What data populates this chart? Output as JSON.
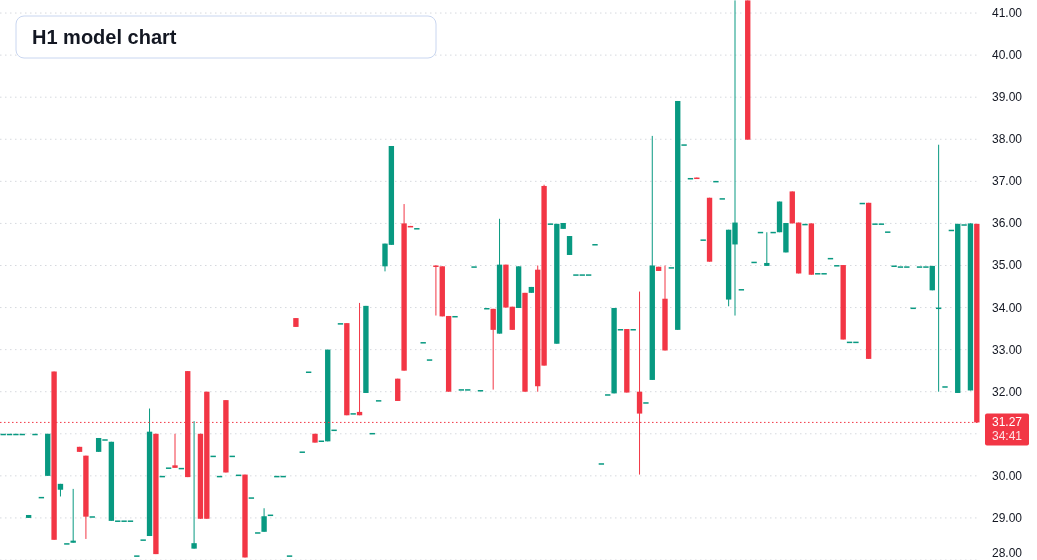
{
  "chart_data": {
    "type": "candlestick",
    "title": "H1 model chart",
    "categories": [
      null,
      null,
      null,
      null,
      null,
      null,
      null,
      null,
      null,
      null,
      null,
      null,
      null,
      null,
      null,
      null,
      null,
      null,
      null,
      null,
      null,
      null,
      null,
      null,
      null,
      null,
      null,
      null,
      null,
      null,
      null,
      null,
      null,
      null,
      null,
      null,
      null,
      null,
      null,
      null,
      null,
      null,
      null,
      null,
      null,
      null,
      null,
      null,
      null,
      null,
      null,
      null,
      null,
      null,
      null,
      null,
      null,
      null,
      null,
      null,
      null,
      null,
      null,
      null,
      null,
      null,
      null,
      null,
      null,
      null,
      null,
      null,
      null,
      null,
      null,
      null,
      null,
      null,
      null,
      null,
      null,
      null,
      null,
      null,
      null,
      null,
      null,
      null,
      null,
      null,
      null,
      null,
      null,
      null,
      null,
      null,
      null,
      null,
      null,
      null,
      null,
      null,
      null,
      null,
      null,
      null,
      null,
      null,
      null,
      null,
      null,
      null,
      null,
      null,
      null,
      null,
      null,
      null,
      null,
      null,
      null,
      null,
      null,
      null,
      null,
      null,
      null,
      null,
      null,
      null,
      null,
      null,
      null,
      null,
      null,
      null,
      null,
      null,
      null,
      null,
      null,
      null,
      null,
      null,
      null,
      null,
      null,
      null,
      null,
      null,
      null,
      null,
      null,
      null
    ],
    "ohlc": [
      [
        31,
        31,
        31,
        31
      ],
      [
        31,
        31,
        31,
        31
      ],
      [
        31,
        31,
        31,
        31
      ],
      [
        31,
        31,
        31,
        31
      ],
      [
        29.0,
        29.07,
        29.0,
        29.07
      ],
      [
        31,
        31,
        31,
        31
      ],
      [
        29.5,
        29.5,
        29.5,
        29.5
      ],
      [
        30.0,
        31.0,
        30.0,
        31.0
      ],
      [
        32.48,
        32.48,
        28.48,
        28.48
      ],
      [
        29.67,
        29.81,
        29.51,
        29.81
      ],
      [
        28.4,
        28.4,
        28.4,
        28.4
      ],
      [
        28.41,
        29.69,
        28.41,
        28.46
      ],
      [
        30.69,
        30.69,
        30.57,
        30.57
      ],
      [
        30.48,
        30.48,
        28.5,
        29.03
      ],
      [
        29.04,
        29.04,
        29.04,
        29.04
      ],
      [
        30.57,
        30.9,
        30.57,
        30.9
      ],
      [
        30.87,
        30.87,
        30.87,
        30.87
      ],
      [
        28.93,
        30.81,
        28.93,
        30.81
      ],
      [
        28.94,
        28.94,
        28.94,
        28.94
      ],
      [
        28.94,
        28.94,
        28.94,
        28.94
      ],
      [
        28.94,
        28.94,
        28.94,
        28.94
      ],
      [
        28.11,
        28.11,
        28.11,
        28.11
      ],
      [
        28.49,
        28.49,
        28.49,
        28.49
      ],
      [
        28.57,
        31.6,
        28.57,
        31.05
      ],
      [
        31.0,
        31.0,
        28.14,
        28.14
      ],
      [
        30.0,
        30.0,
        30.0,
        30.0
      ],
      [
        30.2,
        30.2,
        30.2,
        30.2
      ],
      [
        30.25,
        31.0,
        30.19,
        30.19
      ],
      [
        30.19,
        30.19,
        30.19,
        30.19
      ],
      [
        32.49,
        32.49,
        29.97,
        29.97
      ],
      [
        28.27,
        31.3,
        28.27,
        28.4
      ],
      [
        31.0,
        31.0,
        28.98,
        28.98
      ],
      [
        32.0,
        32.0,
        28.98,
        28.98
      ],
      [
        30.48,
        30.48,
        30.48,
        30.48
      ],
      [
        30.0,
        30.0,
        30.0,
        30.0
      ],
      [
        31.8,
        31.8,
        30.08,
        30.08
      ],
      [
        30.48,
        30.48,
        30.48,
        30.48
      ],
      [
        30.03,
        30.03,
        30.03,
        30.03
      ],
      [
        30.03,
        30.03,
        28.06,
        28.06
      ],
      [
        29.49,
        29.49,
        29.49,
        29.49
      ],
      [
        28.66,
        28.66,
        28.66,
        28.66
      ],
      [
        28.67,
        29.23,
        28.67,
        29.04
      ],
      [
        29.08,
        29.08,
        29.08,
        29.08
      ],
      [
        30.0,
        30.0,
        30.0,
        30.0
      ],
      [
        30.0,
        30.0,
        30.0,
        30.0
      ],
      [
        28.11,
        28.11,
        28.11,
        28.11
      ],
      [
        33.75,
        33.75,
        33.54,
        33.54
      ],
      [
        30.58,
        30.58,
        30.58,
        30.58
      ],
      [
        32.48,
        32.48,
        32.48,
        32.48
      ],
      [
        31.0,
        31.0,
        30.79,
        30.79
      ],
      [
        30.84,
        30.84,
        30.84,
        30.84
      ],
      [
        30.82,
        33.0,
        30.82,
        33.0
      ],
      [
        31.1,
        31.1,
        31.1,
        31.1
      ],
      [
        33.63,
        33.63,
        33.63,
        33.63
      ],
      [
        33.63,
        33.63,
        31.44,
        31.44
      ],
      [
        31.49,
        31.49,
        31.49,
        31.49
      ],
      [
        31.52,
        34.11,
        31.44,
        31.44
      ],
      [
        31.97,
        34.04,
        31.97,
        34.04
      ],
      [
        31.02,
        31.02,
        31.02,
        31.02
      ],
      [
        31.8,
        31.8,
        31.8,
        31.8
      ],
      [
        34.98,
        35.52,
        34.86,
        35.52
      ],
      [
        35.49,
        37.84,
        35.49,
        37.84
      ],
      [
        32.31,
        32.31,
        31.78,
        31.78
      ],
      [
        36.0,
        36.46,
        32.5,
        32.5
      ],
      [
        35.94,
        35.94,
        35.93,
        35.93
      ],
      [
        35.89,
        35.89,
        35.89,
        35.89
      ],
      [
        33.18,
        33.18,
        33.18,
        33.18
      ],
      [
        32.77,
        32.77,
        32.77,
        32.77
      ],
      [
        35.0,
        35.0,
        33.81,
        34.98
      ],
      [
        34.98,
        34.98,
        33.79,
        33.79
      ],
      [
        33.8,
        33.8,
        32.0,
        32.0
      ],
      [
        33.8,
        33.8,
        33.8,
        33.8
      ],
      [
        32.06,
        32.06,
        32.06,
        32.06
      ],
      [
        32.06,
        32.06,
        32.06,
        32.06
      ],
      [
        34.98,
        34.98,
        34.98,
        34.98
      ],
      [
        32.04,
        32.04,
        32.04,
        32.04
      ],
      [
        33.99,
        33.99,
        33.99,
        33.99
      ],
      [
        33.97,
        33.97,
        32.05,
        33.47
      ],
      [
        33.38,
        36.11,
        33.38,
        35.02
      ],
      [
        35.02,
        35.02,
        34.0,
        34.0
      ],
      [
        34.02,
        34.02,
        33.47,
        33.47
      ],
      [
        33.99,
        34.98,
        33.99,
        34.98
      ],
      [
        34.35,
        34.35,
        32.0,
        32.0
      ],
      [
        34.35,
        34.49,
        34.35,
        34.49
      ],
      [
        34.9,
        35.0,
        32.0,
        32.13
      ],
      [
        36.89,
        36.92,
        32.62,
        32.62
      ],
      [
        36.0,
        36.0,
        36.0,
        36.0
      ],
      [
        33.14,
        35.99,
        33.14,
        35.99
      ],
      [
        35.87,
        36.01,
        35.87,
        36.01
      ],
      [
        35.25,
        35.7,
        35.25,
        35.7
      ],
      [
        34.79,
        34.79,
        34.79,
        34.79
      ],
      [
        34.79,
        34.79,
        34.79,
        34.79
      ],
      [
        34.79,
        34.79,
        34.79,
        34.79
      ],
      [
        35.51,
        35.51,
        35.51,
        35.51
      ],
      [
        30.3,
        30.3,
        30.3,
        30.3
      ],
      [
        31.94,
        31.94,
        31.94,
        31.94
      ],
      [
        31.96,
        33.99,
        31.96,
        33.99
      ],
      [
        33.49,
        33.49,
        33.49,
        33.49
      ],
      [
        33.49,
        33.49,
        31.98,
        31.98
      ],
      [
        33.49,
        33.49,
        33.49,
        33.49
      ],
      [
        32.0,
        34.38,
        30.03,
        31.48
      ],
      [
        31.75,
        31.75,
        31.75,
        31.75
      ],
      [
        32.28,
        38.08,
        32.28,
        35.0
      ],
      [
        34.97,
        34.97,
        34.87,
        34.87
      ],
      [
        34.21,
        35.0,
        32.98,
        32.98
      ],
      [
        34.96,
        34.96,
        34.96,
        34.96
      ],
      [
        33.47,
        38.91,
        33.47,
        38.91
      ],
      [
        37.88,
        37.88,
        37.88,
        37.88
      ],
      [
        37.08,
        37.08,
        37.08,
        37.08
      ],
      [
        37.09,
        37.09,
        37.08,
        37.08
      ],
      [
        35.62,
        35.62,
        35.62,
        35.62
      ],
      [
        36.61,
        36.61,
        35.09,
        35.09
      ],
      [
        37.01,
        37.01,
        37.01,
        37.01
      ],
      [
        36.6,
        36.6,
        36.6,
        36.6
      ],
      [
        34.19,
        35.85,
        34.03,
        35.85
      ],
      [
        35.5,
        41.3,
        33.81,
        36.02
      ],
      [
        34.44,
        34.44,
        34.44,
        34.44
      ],
      [
        41.3,
        41.3,
        37.99,
        37.99
      ],
      [
        35.09,
        35.09,
        35.09,
        35.09
      ],
      [
        35.8,
        35.8,
        35.8,
        35.8
      ],
      [
        34.99,
        35.79,
        34.99,
        35.06
      ],
      [
        35.8,
        35.8,
        35.8,
        35.8
      ],
      [
        35.79,
        36.52,
        35.79,
        36.52
      ],
      [
        35.31,
        36.01,
        35.31,
        36.01
      ],
      [
        36.76,
        36.76,
        36.0,
        36.0
      ],
      [
        36.02,
        36.02,
        34.81,
        34.81
      ],
      [
        35.99,
        35.99,
        35.99,
        35.99
      ],
      [
        36.0,
        36.0,
        34.78,
        34.78
      ],
      [
        34.82,
        34.82,
        34.82,
        34.82
      ],
      [
        34.82,
        34.82,
        34.82,
        34.82
      ],
      [
        35.18,
        35.18,
        35.18,
        35.18
      ],
      [
        35.01,
        35.01,
        35.01,
        35.01
      ],
      [
        35.01,
        35.01,
        33.24,
        33.24
      ],
      [
        33.19,
        33.19,
        33.19,
        33.19
      ],
      [
        33.19,
        33.19,
        33.19,
        33.19
      ],
      [
        36.49,
        36.49,
        36.49,
        36.49
      ],
      [
        36.49,
        36.49,
        32.78,
        32.78
      ],
      [
        36.0,
        36.0,
        36.0,
        36.0
      ],
      [
        36.0,
        36.0,
        36.0,
        36.0
      ],
      [
        35.81,
        35.81,
        35.81,
        35.81
      ],
      [
        35.0,
        35.0,
        35.0,
        35.0
      ],
      [
        34.98,
        34.98,
        34.98,
        34.98
      ],
      [
        34.98,
        34.98,
        34.98,
        34.98
      ],
      [
        34.0,
        34.0,
        34.0,
        34.0
      ],
      [
        34.98,
        34.98,
        34.98,
        34.98
      ],
      [
        34.98,
        34.98,
        34.98,
        34.98
      ],
      [
        34.41,
        34.99,
        34.41,
        34.99
      ],
      [
        34.0,
        37.87,
        32.0,
        34.0
      ],
      [
        32.13,
        32.13,
        32.13,
        32.13
      ],
      [
        35.85,
        35.85,
        35.85,
        35.85
      ],
      [
        31.97,
        35.99,
        31.97,
        35.99
      ],
      [
        35.98,
        35.98,
        35.98,
        35.98
      ],
      [
        32.03,
        36.0,
        32.03,
        36.0
      ],
      [
        35.99,
        35.99,
        31.27,
        31.27
      ]
    ],
    "colors": [
      "#089981",
      "#089981",
      "#089981",
      "#089981",
      "#089981",
      "#089981",
      "#089981",
      "#089981",
      "#f23645",
      "#089981",
      "#089981",
      "#089981",
      "#f23645",
      "#f23645",
      "#089981",
      "#089981",
      "#089981",
      "#089981",
      "#089981",
      "#089981",
      "#089981",
      "#089981",
      "#089981",
      "#089981",
      "#f23645",
      "#089981",
      "#089981",
      "#f23645",
      "#089981",
      "#f23645",
      "#089981",
      "#f23645",
      "#f23645",
      "#089981",
      "#089981",
      "#f23645",
      "#089981",
      "#089981",
      "#f23645",
      "#089981",
      "#089981",
      "#089981",
      "#089981",
      "#089981",
      "#089981",
      "#089981",
      "#f23645",
      "#089981",
      "#089981",
      "#f23645",
      "#089981",
      "#089981",
      "#089981",
      "#089981",
      "#f23645",
      "#089981",
      "#f23645",
      "#089981",
      "#089981",
      "#089981",
      "#089981",
      "#089981",
      "#f23645",
      "#f23645",
      "#f23645",
      "#089981",
      "#089981",
      "#089981",
      "#f23645",
      "#f23645",
      "#f23645",
      "#089981",
      "#089981",
      "#089981",
      "#089981",
      "#089981",
      "#089981",
      "#f23645",
      "#089981",
      "#f23645",
      "#f23645",
      "#089981",
      "#f23645",
      "#089981",
      "#f23645",
      "#f23645",
      "#089981",
      "#089981",
      "#089981",
      "#089981",
      "#089981",
      "#089981",
      "#089981",
      "#089981",
      "#089981",
      "#089981",
      "#089981",
      "#089981",
      "#f23645",
      "#089981",
      "#f23645",
      "#089981",
      "#089981",
      "#f23645",
      "#f23645",
      "#089981",
      "#089981",
      "#089981",
      "#089981",
      "#f23645",
      "#089981",
      "#f23645",
      "#089981",
      "#089981",
      "#089981",
      "#089981",
      "#089981",
      "#f23645",
      "#089981",
      "#089981",
      "#089981",
      "#089981",
      "#089981",
      "#089981",
      "#f23645",
      "#f23645",
      "#089981",
      "#f23645",
      "#089981",
      "#089981",
      "#089981",
      "#089981",
      "#f23645",
      "#089981",
      "#089981",
      "#089981",
      "#f23645",
      "#089981",
      "#089981",
      "#089981",
      "#089981",
      "#089981",
      "#089981",
      "#089981",
      "#089981",
      "#089981",
      "#089981",
      "#089981",
      "#089981",
      "#089981",
      "#089981",
      "#089981",
      "#089981",
      "#f23645"
    ],
    "ylim": [
      28,
      41.31
    ],
    "yticks": [
      {
        "value": 28,
        "label": "28.00"
      },
      {
        "value": 29,
        "label": "29.00"
      },
      {
        "value": 30,
        "label": "30.00"
      },
      {
        "value": 31,
        "label": null
      },
      {
        "value": 32,
        "label": "32.00"
      },
      {
        "value": 33,
        "label": "33.00"
      },
      {
        "value": 34,
        "label": "34.00"
      },
      {
        "value": 35,
        "label": "35.00"
      },
      {
        "value": 36,
        "label": "36.00"
      },
      {
        "value": 37,
        "label": "37.00"
      },
      {
        "value": 38,
        "label": "38.00"
      },
      {
        "value": 39,
        "label": "39.00"
      },
      {
        "value": 40,
        "label": "40.00"
      },
      {
        "value": 41,
        "label": "41.00"
      }
    ],
    "grid": "y",
    "ref_lines": [
      {
        "axis": "y",
        "value": 31.27,
        "label": "31.27",
        "color": "#f23645",
        "line_style": "dotted"
      }
    ],
    "annotations": [
      "34:41"
    ]
  }
}
